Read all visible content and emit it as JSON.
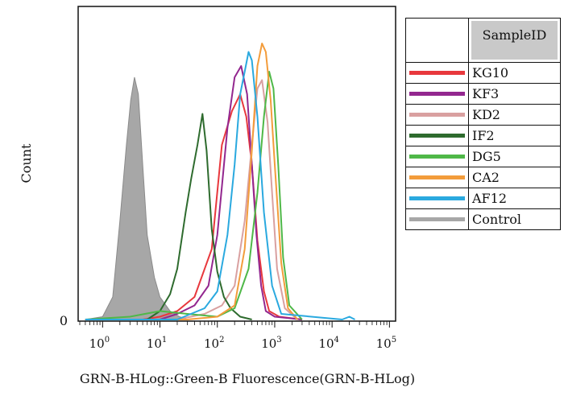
{
  "chart_data": {
    "type": "line",
    "title": "",
    "xlabel": "GRN-B-HLog::Green-B Fluorescence(GRN-B-HLog)",
    "ylabel": "Count",
    "x_scale": "log",
    "xlim": [
      0.4,
      120000
    ],
    "ylim": [
      0,
      1.1
    ],
    "x_ticks": [
      {
        "base": "10",
        "exp": "0",
        "value": 1
      },
      {
        "base": "10",
        "exp": "1",
        "value": 10
      },
      {
        "base": "10",
        "exp": "2",
        "value": 100
      },
      {
        "base": "10",
        "exp": "3",
        "value": 1000
      },
      {
        "base": "10",
        "exp": "4",
        "value": 10000
      },
      {
        "base": "10",
        "exp": "5",
        "value": 100000
      }
    ],
    "y_tick_label": "0",
    "legend_header": "SampleID",
    "legend_position": "right",
    "series": [
      {
        "name": "KG10",
        "color": "#e8383d",
        "x": [
          0.5,
          5,
          10,
          20,
          40,
          80,
          120,
          180,
          250,
          320,
          400,
          500,
          650,
          800,
          1200,
          3000
        ],
        "y": [
          0,
          0,
          0.01,
          0.03,
          0.08,
          0.25,
          0.62,
          0.74,
          0.8,
          0.72,
          0.55,
          0.28,
          0.1,
          0.03,
          0.01,
          0
        ]
      },
      {
        "name": "KF3",
        "color": "#93278f",
        "x": [
          0.5,
          10,
          20,
          40,
          70,
          100,
          150,
          200,
          260,
          330,
          400,
          480,
          580,
          700,
          1000,
          3000
        ],
        "y": [
          0,
          0,
          0.02,
          0.05,
          0.12,
          0.3,
          0.68,
          0.86,
          0.9,
          0.8,
          0.55,
          0.3,
          0.12,
          0.03,
          0.01,
          0
        ]
      },
      {
        "name": "KD2",
        "color": "#d9a0a0",
        "x": [
          0.5,
          20,
          60,
          120,
          200,
          300,
          400,
          500,
          600,
          750,
          900,
          1100,
          1500,
          2500
        ],
        "y": [
          0,
          0,
          0.02,
          0.05,
          0.12,
          0.35,
          0.62,
          0.82,
          0.85,
          0.7,
          0.45,
          0.18,
          0.04,
          0
        ]
      },
      {
        "name": "IF2",
        "color": "#2e6b2e",
        "x": [
          0.5,
          6,
          10,
          15,
          20,
          28,
          35,
          45,
          55,
          65,
          80,
          100,
          130,
          170,
          250,
          400
        ],
        "y": [
          0,
          0,
          0.03,
          0.09,
          0.18,
          0.38,
          0.5,
          0.62,
          0.73,
          0.6,
          0.32,
          0.17,
          0.08,
          0.04,
          0.01,
          0
        ]
      },
      {
        "name": "DG5",
        "color": "#4fb848",
        "x": [
          0.5,
          3,
          10,
          30,
          100,
          200,
          350,
          500,
          650,
          800,
          950,
          1150,
          1400,
          1800,
          3000
        ],
        "y": [
          0,
          0.01,
          0.03,
          0.02,
          0.01,
          0.04,
          0.18,
          0.45,
          0.72,
          0.88,
          0.82,
          0.55,
          0.22,
          0.05,
          0
        ]
      },
      {
        "name": "CA2",
        "color": "#f39c3b",
        "x": [
          0.5,
          30,
          100,
          200,
          300,
          400,
          500,
          600,
          700,
          850,
          1000,
          1300,
          1700,
          2500
        ],
        "y": [
          0,
          0,
          0.01,
          0.05,
          0.25,
          0.6,
          0.9,
          0.98,
          0.95,
          0.78,
          0.55,
          0.2,
          0.04,
          0
        ]
      },
      {
        "name": "AF12",
        "color": "#2aa9df",
        "x": [
          0.5,
          20,
          60,
          100,
          150,
          200,
          250,
          300,
          350,
          400,
          500,
          650,
          900,
          1300,
          15000,
          20000,
          25000
        ],
        "y": [
          0,
          0,
          0.04,
          0.1,
          0.3,
          0.55,
          0.8,
          0.88,
          0.95,
          0.92,
          0.72,
          0.38,
          0.12,
          0.02,
          0,
          0.01,
          0
        ]
      },
      {
        "name": "Control",
        "color": "#a7a7a7",
        "x": [
          0.5,
          1,
          1.5,
          2,
          2.6,
          3.1,
          3.6,
          4.2,
          5,
          6,
          8,
          10,
          15,
          22,
          30
        ],
        "y": [
          0,
          0.01,
          0.08,
          0.35,
          0.62,
          0.78,
          0.86,
          0.8,
          0.55,
          0.3,
          0.15,
          0.08,
          0.03,
          0.01,
          0
        ]
      }
    ]
  }
}
